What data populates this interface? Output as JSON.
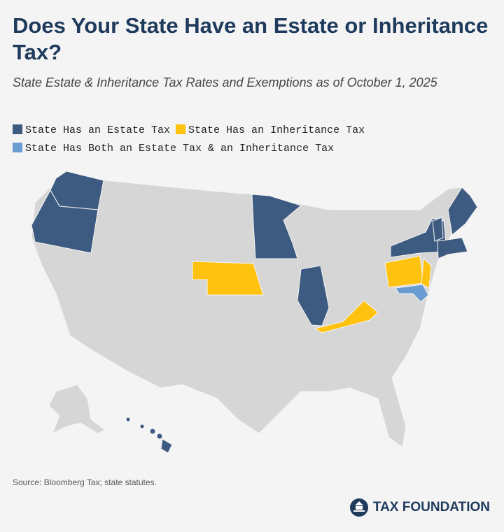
{
  "header": {
    "title": "Does Your State Have an Estate or Inheritance Tax?",
    "subtitle": "State Estate & Inheritance Tax Rates and Exemptions as of October 1, 2025"
  },
  "legend": [
    {
      "label": "State Has an Estate Tax",
      "color": "#3d5a80"
    },
    {
      "label": "State Has an Inheritance Tax",
      "color": "#ffc20e"
    },
    {
      "label": "State Has Both an Estate Tax & an Inheritance Tax",
      "color": "#6a9bd1"
    }
  ],
  "footer": {
    "source": "Source: Bloomberg Tax; state statutes.",
    "brand": "TAX FOUNDATION"
  }
}
